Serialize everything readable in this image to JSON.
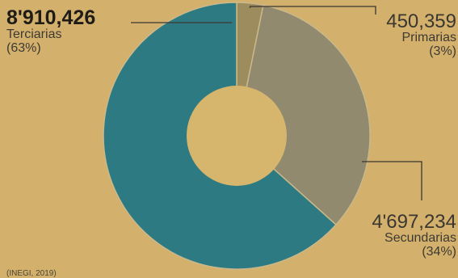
{
  "chart_data": {
    "type": "pie",
    "style": "donut",
    "start_at": "12 o'clock",
    "direction": "clockwise",
    "slices": [
      {
        "label": "Primarias",
        "value": 450359,
        "value_text": "450,359",
        "percent_text": "(3%)",
        "color": "#9d8c5e",
        "label_position": "top-right"
      },
      {
        "label": "Secundarias",
        "value": 4697234,
        "value_text": "4'697,234",
        "percent_text": "(34%)",
        "color": "#928a6f",
        "label_position": "bottom-right"
      },
      {
        "label": "Terciarias",
        "value": 8910426,
        "value_text": "8'910,426",
        "percent_text": "(63%)",
        "color": "#2e7a82",
        "label_position": "top-left"
      }
    ]
  },
  "colors": {
    "background": "#d3b06c",
    "hole": "#d6b56d",
    "leader_line": "#3a3731",
    "slice_separator": "#c9b98a"
  },
  "footnote": "(INEGI, 2019)"
}
